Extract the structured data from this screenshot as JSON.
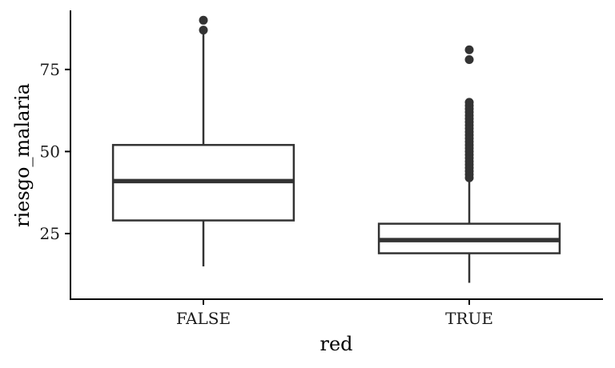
{
  "chart_data": {
    "type": "boxplot",
    "xlabel": "red",
    "ylabel": "riesgo_malaria",
    "ylim": [
      5,
      93
    ],
    "y_ticks": [
      25,
      50,
      75
    ],
    "grid": false,
    "legend": "none",
    "categories": [
      "FALSE",
      "TRUE"
    ],
    "boxes": [
      {
        "category": "FALSE",
        "whisker_low": 15,
        "q1": 29,
        "median": 41,
        "q3": 52,
        "whisker_high": 87,
        "outliers": [
          87,
          90
        ]
      },
      {
        "category": "TRUE",
        "whisker_low": 10,
        "q1": 19,
        "median": 23,
        "q3": 28,
        "whisker_high": 41,
        "outliers": [
          42,
          43,
          44,
          45,
          46,
          47,
          48,
          49,
          50,
          51,
          52,
          53,
          54,
          55,
          56,
          57,
          58,
          59,
          60,
          61,
          62,
          63,
          64,
          65,
          78,
          81
        ]
      }
    ],
    "colors": {
      "box_stroke": "#333333",
      "box_fill": "#ffffff",
      "axis": "#000000"
    }
  }
}
